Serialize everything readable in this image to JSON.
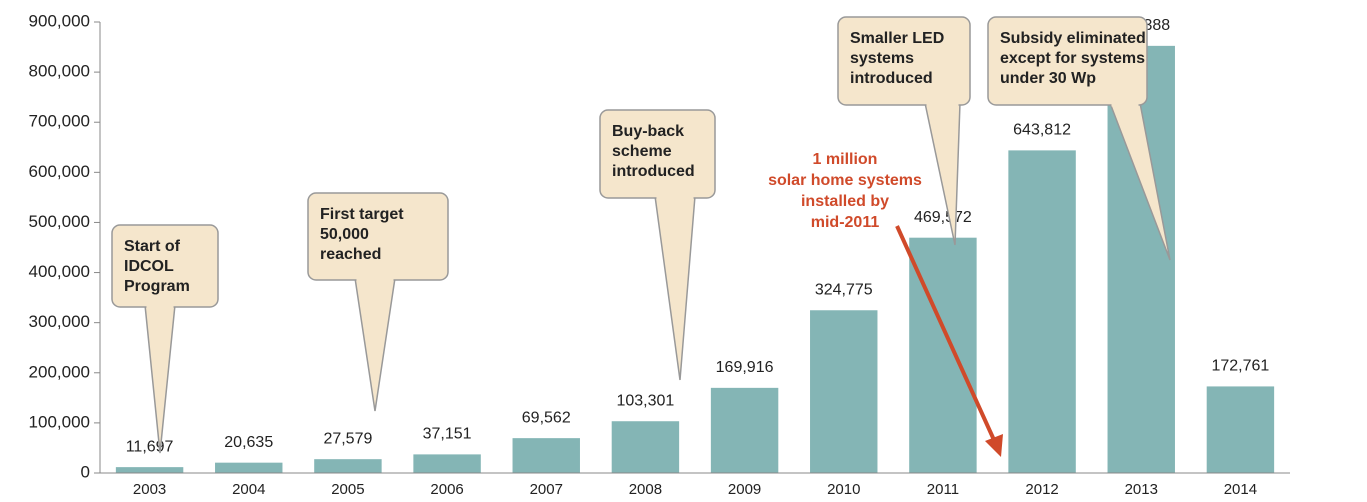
{
  "chart_data": {
    "type": "bar",
    "categories": [
      "2003",
      "2004",
      "2005",
      "2006",
      "2007",
      "2008",
      "2009",
      "2010",
      "2011",
      "2012",
      "2013",
      "2014"
    ],
    "values": [
      11697,
      20635,
      27579,
      37151,
      69562,
      103301,
      169916,
      324775,
      469572,
      643812,
      852388,
      172761
    ],
    "value_labels": [
      "11,697",
      "20,635",
      "27,579",
      "37,151",
      "69,562",
      "103,301",
      "169,916",
      "324,775",
      "469,572",
      "643,812",
      "852,388",
      "172,761"
    ],
    "color": "#84b5b5",
    "ylim": [
      0,
      900000
    ],
    "yticks": [
      0,
      {
        "value": 100000,
        "label": "100,000"
      },
      {
        "value": 200000,
        "label": "200,000"
      },
      {
        "value": 300000,
        "label": "300,000"
      },
      {
        "value": 400000,
        "label": "400,000"
      },
      {
        "value": 500000,
        "label": "500,000"
      },
      {
        "value": 600000,
        "label": "600,000"
      },
      {
        "value": 700000,
        "label": "700,000"
      },
      {
        "value": 800000,
        "label": "800,000"
      },
      {
        "value": 900000,
        "label": "900,000"
      }
    ],
    "annotations": [
      {
        "lines": [
          "Start of",
          "IDCOL",
          "Program"
        ]
      },
      {
        "lines": [
          "First target",
          "50,000",
          "reached"
        ]
      },
      {
        "lines": [
          "Buy-back",
          "scheme",
          "introduced"
        ]
      },
      {
        "lines": [
          "Smaller LED",
          "systems",
          "introduced"
        ]
      },
      {
        "lines": [
          "Subsidy eliminated",
          "except for systems",
          "under 30 Wp"
        ]
      }
    ],
    "highlight": {
      "lines": [
        "1 million",
        "solar home systems",
        "installed by",
        "mid-2011"
      ],
      "color": "#d04a2a"
    }
  }
}
